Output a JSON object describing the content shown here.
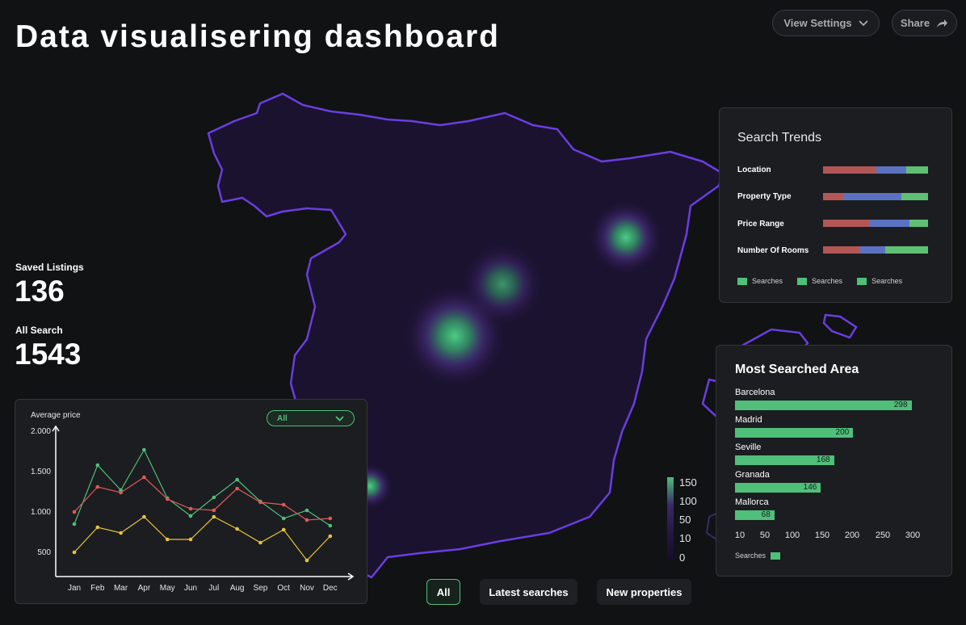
{
  "header": {
    "title": "Data visualisering dashboard",
    "view_settings_label": "View Settings",
    "share_label": "Share"
  },
  "stats": {
    "saved_listings_label": "Saved Listings",
    "saved_listings_value": "136",
    "all_search_label": "All Search",
    "all_search_value": "1543"
  },
  "search_trends": {
    "title": "Search Trends",
    "colors": [
      "#b35656",
      "#5b72c2",
      "#5fbf74"
    ],
    "rows": [
      {
        "label": "Location",
        "parts": [
          0.51,
          0.28,
          0.21
        ]
      },
      {
        "label": "Property Type",
        "parts": [
          0.19,
          0.56,
          0.25
        ]
      },
      {
        "label": "Price Range",
        "parts": [
          0.44,
          0.38,
          0.18
        ]
      },
      {
        "label": "Number Of Rooms",
        "parts": [
          0.35,
          0.24,
          0.41
        ]
      }
    ],
    "legend": [
      "Searches",
      "Searches",
      "Searches"
    ]
  },
  "most_searched": {
    "title": "Most Searched Area",
    "bar_color": "#4fbf7a",
    "items": [
      {
        "name": "Barcelona",
        "value": 298
      },
      {
        "name": "Madrid",
        "value": 200
      },
      {
        "name": "Seville",
        "value": 168
      },
      {
        "name": "Granada",
        "value": 146
      },
      {
        "name": "Mallorca",
        "value": 68
      }
    ],
    "ticks": [
      "10",
      "50",
      "100",
      "150",
      "200",
      "250",
      "300"
    ],
    "legend": "Searches"
  },
  "heat_scale": {
    "labels": [
      "150",
      "100",
      "50",
      "10",
      "0"
    ]
  },
  "price_chart": {
    "ylabel": "Average price",
    "dropdown_value": "All",
    "y_ticks": [
      "2.000",
      "1.500",
      "1.000",
      "500"
    ]
  },
  "chart_data": {
    "type": "line",
    "title": "",
    "ylabel": "Average price",
    "xlabel": "",
    "ylim": [
      200,
      2200
    ],
    "categories": [
      "Jan",
      "Feb",
      "Mar",
      "Apr",
      "May",
      "Jun",
      "Jul",
      "Aug",
      "Sep",
      "Oct",
      "Nov",
      "Dec"
    ],
    "series": [
      {
        "color": "#4fbf7a",
        "values": [
          850,
          1580,
          1270,
          1770,
          1170,
          950,
          1180,
          1400,
          1130,
          920,
          1020,
          830
        ]
      },
      {
        "color": "#e05a5a",
        "values": [
          1000,
          1310,
          1240,
          1430,
          1160,
          1040,
          1020,
          1290,
          1120,
          1090,
          900,
          920
        ]
      },
      {
        "color": "#e8c53a",
        "values": [
          500,
          810,
          740,
          940,
          660,
          660,
          940,
          790,
          620,
          780,
          400,
          700
        ]
      }
    ]
  },
  "filters": {
    "all_label": "All",
    "latest_label": "Latest searches",
    "new_label": "New properties"
  }
}
